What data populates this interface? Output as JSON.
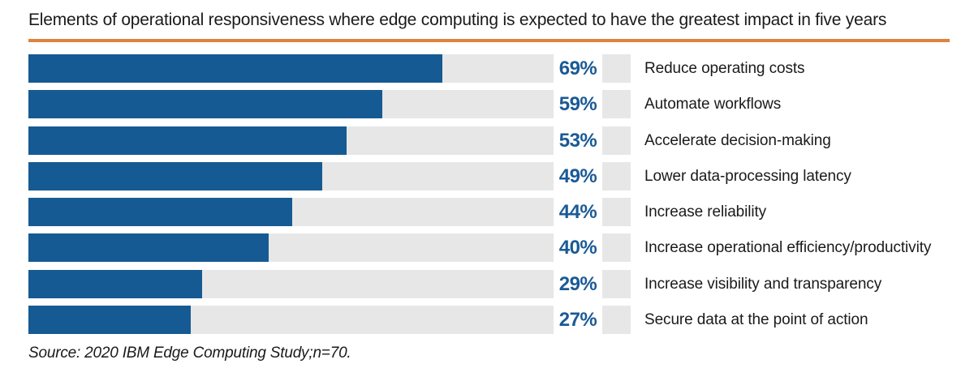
{
  "colors": {
    "bar_fill": "#165A94",
    "bar_track": "#E6E7E6",
    "accent_rule": "#E0813F",
    "value_text": "#1A5A96",
    "body_text": "#1A1A1A",
    "background": "#FFFFFF"
  },
  "chart_data": {
    "type": "bar",
    "orientation": "horizontal",
    "title": "Elements of operational responsiveness where edge computing is expected to have the greatest impact in five years",
    "categories": [
      "Reduce operating costs",
      "Automate workflows",
      "Accelerate decision-making",
      "Lower data-processing latency",
      "Increase reliability",
      "Increase operational efficiency/productivity",
      "Increase visibility and transparency",
      "Secure data at the point of action"
    ],
    "values": [
      69,
      59,
      53,
      49,
      44,
      40,
      29,
      27
    ],
    "unit": "%",
    "xlim": [
      0,
      87.5
    ],
    "grid": false,
    "legend": false,
    "value_labels_shown": true,
    "source": "Source: 2020 IBM Edge Computing Study;n=70."
  }
}
